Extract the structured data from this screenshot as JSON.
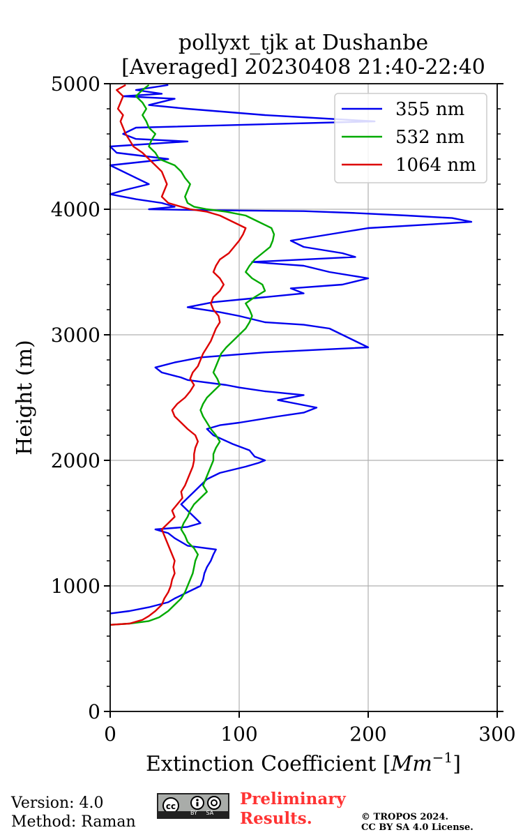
{
  "chart_data": {
    "type": "line",
    "title": "pollyxt_tjk at Dushanbe",
    "subtitle": "[Averaged] 20230408 21:40-22:40",
    "xlabel": "Extinction Coefficient [Mm⁻¹]",
    "ylabel": "Height (m)",
    "xlim": [
      0,
      300
    ],
    "ylim": [
      0,
      5000
    ],
    "xticks": [
      0,
      100,
      200,
      300
    ],
    "yticks": [
      0,
      1000,
      2000,
      3000,
      4000,
      5000
    ],
    "grid": true,
    "legend_position": "top-right",
    "series": [
      {
        "name": "355 nm",
        "color": "#0000ee",
        "points": [
          [
            0,
            780
          ],
          [
            15,
            800
          ],
          [
            30,
            830
          ],
          [
            45,
            870
          ],
          [
            50,
            900
          ],
          [
            60,
            950
          ],
          [
            70,
            1000
          ],
          [
            72,
            1050
          ],
          [
            73,
            1100
          ],
          [
            75,
            1150
          ],
          [
            78,
            1200
          ],
          [
            80,
            1250
          ],
          [
            82,
            1290
          ],
          [
            60,
            1320
          ],
          [
            55,
            1350
          ],
          [
            50,
            1380
          ],
          [
            45,
            1420
          ],
          [
            35,
            1450
          ],
          [
            60,
            1470
          ],
          [
            70,
            1500
          ],
          [
            65,
            1550
          ],
          [
            60,
            1600
          ],
          [
            55,
            1650
          ],
          [
            60,
            1700
          ],
          [
            65,
            1750
          ],
          [
            70,
            1800
          ],
          [
            75,
            1850
          ],
          [
            85,
            1900
          ],
          [
            105,
            1950
          ],
          [
            115,
            1980
          ],
          [
            120,
            2000
          ],
          [
            112,
            2030
          ],
          [
            108,
            2080
          ],
          [
            95,
            2130
          ],
          [
            80,
            2200
          ],
          [
            75,
            2250
          ],
          [
            85,
            2280
          ],
          [
            100,
            2300
          ],
          [
            130,
            2350
          ],
          [
            150,
            2380
          ],
          [
            160,
            2420
          ],
          [
            145,
            2450
          ],
          [
            130,
            2480
          ],
          [
            150,
            2520
          ],
          [
            120,
            2550
          ],
          [
            100,
            2580
          ],
          [
            90,
            2600
          ],
          [
            75,
            2620
          ],
          [
            60,
            2640
          ],
          [
            55,
            2660
          ],
          [
            40,
            2700
          ],
          [
            35,
            2740
          ],
          [
            50,
            2780
          ],
          [
            70,
            2820
          ],
          [
            120,
            2860
          ],
          [
            160,
            2880
          ],
          [
            200,
            2900
          ],
          [
            190,
            2950
          ],
          [
            180,
            3000
          ],
          [
            170,
            3050
          ],
          [
            150,
            3080
          ],
          [
            120,
            3100
          ],
          [
            100,
            3150
          ],
          [
            85,
            3180
          ],
          [
            60,
            3220
          ],
          [
            80,
            3260
          ],
          [
            120,
            3300
          ],
          [
            150,
            3330
          ],
          [
            140,
            3370
          ],
          [
            180,
            3400
          ],
          [
            200,
            3450
          ],
          [
            170,
            3500
          ],
          [
            150,
            3550
          ],
          [
            110,
            3580
          ],
          [
            190,
            3620
          ],
          [
            180,
            3650
          ],
          [
            150,
            3700
          ],
          [
            140,
            3750
          ],
          [
            170,
            3800
          ],
          [
            200,
            3850
          ],
          [
            250,
            3880
          ],
          [
            280,
            3900
          ],
          [
            265,
            3930
          ],
          [
            230,
            3950
          ],
          [
            190,
            3970
          ],
          [
            150,
            3985
          ],
          [
            100,
            3990
          ],
          [
            60,
            3995
          ],
          [
            30,
            4000
          ],
          [
            50,
            4020
          ],
          [
            40,
            4050
          ],
          [
            20,
            4080
          ],
          [
            0,
            4120
          ],
          [
            10,
            4150
          ],
          [
            30,
            4200
          ],
          [
            0,
            4350
          ],
          [
            45,
            4400
          ],
          [
            5,
            4450
          ],
          [
            0,
            4500
          ],
          [
            60,
            4540
          ],
          [
            20,
            4560
          ],
          [
            10,
            4600
          ],
          [
            20,
            4650
          ],
          [
            205,
            4700
          ],
          [
            120,
            4750
          ],
          [
            60,
            4800
          ],
          [
            30,
            4830
          ],
          [
            50,
            4880
          ],
          [
            10,
            4900
          ],
          [
            40,
            4920
          ],
          [
            20,
            4950
          ],
          [
            45,
            4990
          ]
        ]
      },
      {
        "name": "532 nm",
        "color": "#00aa00",
        "points": [
          [
            0,
            690
          ],
          [
            15,
            700
          ],
          [
            30,
            720
          ],
          [
            38,
            750
          ],
          [
            45,
            800
          ],
          [
            50,
            850
          ],
          [
            55,
            900
          ],
          [
            58,
            950
          ],
          [
            60,
            1000
          ],
          [
            62,
            1050
          ],
          [
            64,
            1100
          ],
          [
            65,
            1150
          ],
          [
            66,
            1200
          ],
          [
            68,
            1250
          ],
          [
            65,
            1300
          ],
          [
            60,
            1350
          ],
          [
            58,
            1400
          ],
          [
            55,
            1450
          ],
          [
            57,
            1500
          ],
          [
            60,
            1550
          ],
          [
            62,
            1600
          ],
          [
            65,
            1650
          ],
          [
            70,
            1700
          ],
          [
            75,
            1750
          ],
          [
            72,
            1800
          ],
          [
            74,
            1850
          ],
          [
            76,
            1900
          ],
          [
            78,
            1950
          ],
          [
            80,
            2000
          ],
          [
            80,
            2050
          ],
          [
            82,
            2100
          ],
          [
            85,
            2150
          ],
          [
            82,
            2200
          ],
          [
            78,
            2250
          ],
          [
            75,
            2300
          ],
          [
            72,
            2350
          ],
          [
            70,
            2400
          ],
          [
            72,
            2450
          ],
          [
            75,
            2500
          ],
          [
            80,
            2550
          ],
          [
            85,
            2600
          ],
          [
            83,
            2650
          ],
          [
            80,
            2700
          ],
          [
            82,
            2750
          ],
          [
            84,
            2800
          ],
          [
            86,
            2850
          ],
          [
            90,
            2900
          ],
          [
            95,
            2950
          ],
          [
            100,
            3000
          ],
          [
            105,
            3050
          ],
          [
            108,
            3100
          ],
          [
            110,
            3150
          ],
          [
            108,
            3200
          ],
          [
            105,
            3250
          ],
          [
            112,
            3300
          ],
          [
            120,
            3350
          ],
          [
            118,
            3400
          ],
          [
            110,
            3450
          ],
          [
            105,
            3500
          ],
          [
            108,
            3550
          ],
          [
            112,
            3600
          ],
          [
            118,
            3650
          ],
          [
            124,
            3700
          ],
          [
            126,
            3750
          ],
          [
            127,
            3800
          ],
          [
            125,
            3850
          ],
          [
            115,
            3900
          ],
          [
            105,
            3950
          ],
          [
            90,
            3980
          ],
          [
            75,
            4000
          ],
          [
            65,
            4020
          ],
          [
            60,
            4050
          ],
          [
            58,
            4100
          ],
          [
            60,
            4150
          ],
          [
            62,
            4200
          ],
          [
            58,
            4250
          ],
          [
            55,
            4300
          ],
          [
            50,
            4350
          ],
          [
            38,
            4400
          ],
          [
            35,
            4450
          ],
          [
            30,
            4500
          ],
          [
            32,
            4550
          ],
          [
            35,
            4600
          ],
          [
            30,
            4650
          ],
          [
            28,
            4700
          ],
          [
            25,
            4750
          ],
          [
            28,
            4800
          ],
          [
            25,
            4850
          ],
          [
            20,
            4900
          ],
          [
            25,
            4950
          ],
          [
            30,
            4990
          ]
        ]
      },
      {
        "name": "1064 nm",
        "color": "#dd0000",
        "points": [
          [
            0,
            690
          ],
          [
            15,
            700
          ],
          [
            25,
            730
          ],
          [
            30,
            760
          ],
          [
            35,
            800
          ],
          [
            40,
            850
          ],
          [
            42,
            900
          ],
          [
            45,
            950
          ],
          [
            47,
            1000
          ],
          [
            48,
            1050
          ],
          [
            50,
            1100
          ],
          [
            49,
            1150
          ],
          [
            50,
            1200
          ],
          [
            48,
            1250
          ],
          [
            46,
            1300
          ],
          [
            44,
            1350
          ],
          [
            42,
            1400
          ],
          [
            40,
            1450
          ],
          [
            45,
            1500
          ],
          [
            50,
            1550
          ],
          [
            48,
            1600
          ],
          [
            52,
            1650
          ],
          [
            56,
            1700
          ],
          [
            55,
            1750
          ],
          [
            58,
            1800
          ],
          [
            60,
            1850
          ],
          [
            62,
            1900
          ],
          [
            64,
            1950
          ],
          [
            65,
            2000
          ],
          [
            65,
            2050
          ],
          [
            66,
            2100
          ],
          [
            68,
            2150
          ],
          [
            66,
            2200
          ],
          [
            60,
            2250
          ],
          [
            55,
            2300
          ],
          [
            50,
            2350
          ],
          [
            48,
            2400
          ],
          [
            52,
            2450
          ],
          [
            58,
            2500
          ],
          [
            62,
            2550
          ],
          [
            65,
            2600
          ],
          [
            62,
            2650
          ],
          [
            64,
            2700
          ],
          [
            68,
            2750
          ],
          [
            70,
            2800
          ],
          [
            72,
            2850
          ],
          [
            75,
            2900
          ],
          [
            78,
            2950
          ],
          [
            80,
            3000
          ],
          [
            82,
            3050
          ],
          [
            85,
            3100
          ],
          [
            84,
            3150
          ],
          [
            80,
            3200
          ],
          [
            78,
            3250
          ],
          [
            80,
            3300
          ],
          [
            85,
            3350
          ],
          [
            88,
            3400
          ],
          [
            85,
            3450
          ],
          [
            80,
            3500
          ],
          [
            82,
            3550
          ],
          [
            85,
            3600
          ],
          [
            92,
            3650
          ],
          [
            96,
            3700
          ],
          [
            100,
            3750
          ],
          [
            103,
            3800
          ],
          [
            105,
            3850
          ],
          [
            95,
            3900
          ],
          [
            85,
            3950
          ],
          [
            75,
            3980
          ],
          [
            62,
            4000
          ],
          [
            55,
            4020
          ],
          [
            45,
            4050
          ],
          [
            40,
            4100
          ],
          [
            42,
            4150
          ],
          [
            44,
            4200
          ],
          [
            42,
            4250
          ],
          [
            40,
            4300
          ],
          [
            35,
            4350
          ],
          [
            30,
            4400
          ],
          [
            25,
            4450
          ],
          [
            18,
            4500
          ],
          [
            15,
            4550
          ],
          [
            12,
            4600
          ],
          [
            10,
            4650
          ],
          [
            8,
            4700
          ],
          [
            10,
            4750
          ],
          [
            6,
            4800
          ],
          [
            8,
            4850
          ],
          [
            10,
            4900
          ],
          [
            5,
            4950
          ],
          [
            12,
            4990
          ]
        ]
      }
    ]
  },
  "footer": {
    "version": "Version: 4.0",
    "method": "Method: Raman",
    "license_badge": "BY SA",
    "preliminary_line1": "Preliminary",
    "preliminary_line2": "Results.",
    "copyright_line1": "© TROPOS 2024.",
    "copyright_line2": "CC BY SA 4.0 License."
  }
}
